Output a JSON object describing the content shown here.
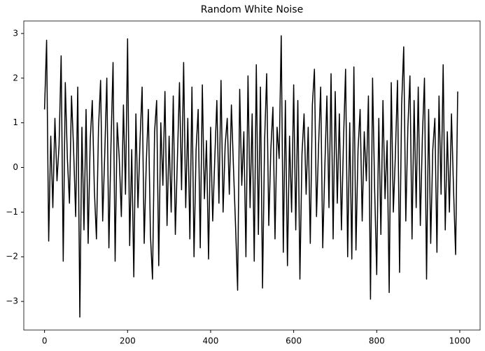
{
  "chart_data": {
    "type": "line",
    "title": "Random White Noise",
    "x": [
      0,
      5,
      10,
      15,
      20,
      25,
      30,
      35,
      40,
      45,
      50,
      55,
      60,
      65,
      70,
      75,
      80,
      85,
      90,
      95,
      100,
      105,
      110,
      115,
      120,
      125,
      130,
      135,
      140,
      145,
      150,
      155,
      160,
      165,
      170,
      175,
      180,
      185,
      190,
      195,
      200,
      205,
      210,
      215,
      220,
      225,
      230,
      235,
      240,
      245,
      250,
      255,
      260,
      265,
      270,
      275,
      280,
      285,
      290,
      295,
      300,
      305,
      310,
      315,
      320,
      325,
      330,
      335,
      340,
      345,
      350,
      355,
      360,
      365,
      370,
      375,
      380,
      385,
      390,
      395,
      400,
      405,
      410,
      415,
      420,
      425,
      430,
      435,
      440,
      445,
      450,
      455,
      460,
      465,
      470,
      475,
      480,
      485,
      490,
      495,
      500,
      505,
      510,
      515,
      520,
      525,
      530,
      535,
      540,
      545,
      550,
      555,
      560,
      565,
      570,
      575,
      580,
      585,
      590,
      595,
      600,
      605,
      610,
      615,
      620,
      625,
      630,
      635,
      640,
      645,
      650,
      655,
      660,
      665,
      670,
      675,
      680,
      685,
      690,
      695,
      700,
      705,
      710,
      715,
      720,
      725,
      730,
      735,
      740,
      745,
      750,
      755,
      760,
      765,
      770,
      775,
      780,
      785,
      790,
      795,
      800,
      805,
      810,
      815,
      820,
      825,
      830,
      835,
      840,
      845,
      850,
      855,
      860,
      865,
      870,
      875,
      880,
      885,
      890,
      895,
      900,
      905,
      910,
      915,
      920,
      925,
      930,
      935,
      940,
      945,
      950,
      955,
      960,
      965,
      970,
      975,
      980,
      985,
      990,
      995
    ],
    "series": [
      {
        "color": "#000000",
        "values": [
          1.3,
          2.85,
          -1.65,
          0.7,
          -0.9,
          1.1,
          -0.3,
          0.5,
          2.5,
          -2.1,
          1.9,
          0.2,
          -0.8,
          1.6,
          0.4,
          -1.1,
          1.8,
          -3.35,
          0.9,
          -1.4,
          1.3,
          -1.7,
          0.6,
          1.5,
          -0.5,
          -1.6,
          0.9,
          1.95,
          -1.2,
          0.3,
          2.0,
          -1.8,
          0.5,
          2.35,
          -2.1,
          1.0,
          0.2,
          -1.1,
          1.4,
          -0.6,
          2.88,
          -1.75,
          0.4,
          -2.45,
          1.2,
          -0.9,
          0.6,
          1.8,
          -1.7,
          0.1,
          1.3,
          -1.5,
          -2.5,
          0.8,
          1.5,
          -2.2,
          1.0,
          -0.4,
          1.7,
          -1.3,
          0.7,
          -1.0,
          1.6,
          -1.5,
          0.2,
          1.9,
          -0.5,
          2.35,
          -0.9,
          1.1,
          -1.6,
          1.8,
          -2.0,
          0.4,
          1.3,
          -1.8,
          1.85,
          -0.7,
          0.6,
          -2.05,
          0.9,
          -1.2,
          0.2,
          1.5,
          -0.8,
          1.95,
          -1.0,
          0.5,
          1.1,
          -0.6,
          1.4,
          0.0,
          -1.3,
          -2.75,
          1.75,
          -0.4,
          0.8,
          -2.0,
          2.05,
          -0.9,
          1.2,
          -2.1,
          2.3,
          -1.5,
          1.8,
          -2.7,
          0.6,
          2.1,
          -1.3,
          0.4,
          1.35,
          -1.6,
          0.9,
          0.2,
          2.95,
          -1.9,
          1.5,
          -2.2,
          0.7,
          -1.0,
          1.85,
          -1.4,
          1.5,
          -2.5,
          0.3,
          1.2,
          -0.6,
          0.9,
          -1.7,
          1.4,
          2.2,
          -1.1,
          0.5,
          1.8,
          -1.8,
          0.0,
          1.6,
          -0.9,
          2.1,
          -1.6,
          1.7,
          -0.8,
          1.2,
          -1.4,
          0.6,
          2.2,
          -2.0,
          1.0,
          -2.05,
          2.25,
          -1.85,
          0.4,
          1.3,
          -1.2,
          0.8,
          -0.3,
          1.6,
          -2.95,
          2.0,
          -0.5,
          -2.4,
          1.1,
          -1.5,
          1.5,
          -0.7,
          0.6,
          -2.8,
          1.9,
          -1.0,
          0.3,
          1.95,
          -2.35,
          1.4,
          2.7,
          -1.2,
          0.9,
          2.05,
          -1.6,
          1.5,
          -0.9,
          1.8,
          -1.3,
          0.7,
          2.0,
          -2.5,
          1.3,
          -1.7,
          0.4,
          1.1,
          -1.9,
          1.6,
          -0.6,
          2.3,
          -1.4,
          0.8,
          -1.0,
          1.2,
          -0.5,
          -1.95,
          1.7
        ]
      }
    ],
    "xlim": [
      -49.95,
      1048.95
    ],
    "ylim": [
      -3.64,
      3.28
    ],
    "xticks": [
      0,
      200,
      400,
      600,
      800,
      1000
    ],
    "yticks": [
      {
        "value": -3,
        "label": "−3"
      },
      {
        "value": -2,
        "label": "−2"
      },
      {
        "value": -1,
        "label": "−1"
      },
      0,
      1,
      2,
      3
    ],
    "grid": false
  }
}
